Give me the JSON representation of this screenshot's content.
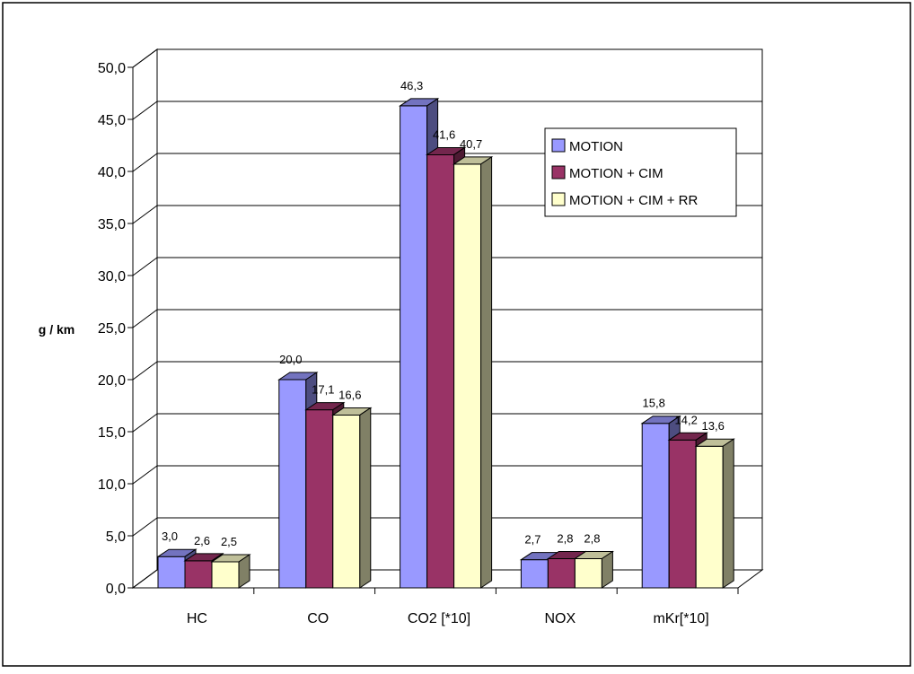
{
  "chart_data": {
    "type": "bar",
    "title": "",
    "xlabel": "",
    "ylabel": "g / km",
    "ylim": [
      0,
      50
    ],
    "y_ticks": [
      "0,0",
      "5,0",
      "10,0",
      "15,0",
      "20,0",
      "25,0",
      "30,0",
      "35,0",
      "40,0",
      "45,0",
      "50,0"
    ],
    "categories": [
      "HC",
      "CO",
      "CO2 [*10]",
      "NOX",
      "mKr[*10]"
    ],
    "series": [
      {
        "name": "MOTION",
        "values": [
          3.0,
          20.0,
          46.3,
          2.7,
          15.8
        ],
        "labels": [
          "3,0",
          "20,0",
          "46,3",
          "2,7",
          "15,8"
        ],
        "color": "#9999ff"
      },
      {
        "name": "MOTION + CIM",
        "values": [
          2.6,
          17.1,
          41.6,
          2.8,
          14.2
        ],
        "labels": [
          "2,6",
          "17,1",
          "41,6",
          "2,8",
          "14,2"
        ],
        "color": "#993366"
      },
      {
        "name": "MOTION + CIM + RR",
        "values": [
          2.5,
          16.6,
          40.7,
          2.8,
          13.6
        ],
        "labels": [
          "2,5",
          "16,6",
          "40,7",
          "2,8",
          "13,6"
        ],
        "color": "#ffffcc"
      }
    ],
    "grid": true,
    "legend_position": "top-right"
  }
}
